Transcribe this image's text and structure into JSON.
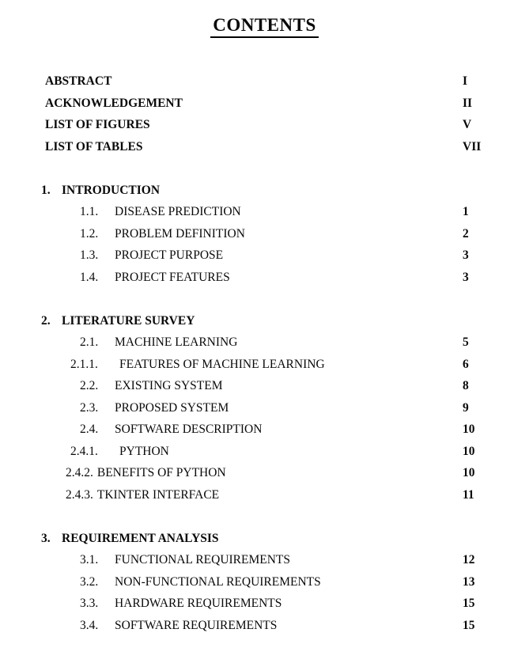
{
  "page": {
    "title": "CONTENTS"
  },
  "front_matter": [
    {
      "label": "ABSTRACT",
      "page": "I"
    },
    {
      "label": "ACKNOWLEDGEMENT",
      "page": "II"
    },
    {
      "label": "LIST OF FIGURES",
      "page": "V"
    },
    {
      "label": "LIST OF TABLES",
      "page": "VII"
    }
  ],
  "sections": [
    {
      "number": "1.",
      "title": "INTRODUCTION",
      "items": [
        {
          "number": "1.1.",
          "text": "DISEASE PREDICTION",
          "page": "1"
        },
        {
          "number": "1.2.",
          "text": "PROBLEM DEFINITION",
          "page": "2"
        },
        {
          "number": "1.3.",
          "text": "PROJECT PURPOSE",
          "page": "3"
        },
        {
          "number": "1.4.",
          "text": "PROJECT FEATURES",
          "page": "3"
        }
      ]
    },
    {
      "number": "2.",
      "title": "LITERATURE SURVEY",
      "items": [
        {
          "number": "2.1.",
          "text": "MACHINE LEARNING",
          "page": "5"
        },
        {
          "number": "2.1.1.",
          "text": "FEATURES OF MACHINE LEARNING",
          "page": "6"
        },
        {
          "number": "2.2.",
          "text": "EXISTING SYSTEM",
          "page": "8"
        },
        {
          "number": "2.3.",
          "text": "PROPOSED SYSTEM",
          "page": "9"
        },
        {
          "number": "2.4.",
          "text": "SOFTWARE DESCRIPTION",
          "page": "10"
        },
        {
          "number": "2.4.1.",
          "text": "PYTHON",
          "page": "10"
        },
        {
          "number": "2.4.2.",
          "text": "BENEFITS OF PYTHON",
          "page": "10"
        },
        {
          "number": "2.4.3.",
          "text": "TKINTER INTERFACE",
          "page": "11"
        }
      ]
    },
    {
      "number": "3.",
      "title": "REQUIREMENT ANALYSIS",
      "items": [
        {
          "number": "3.1.",
          "text": "FUNCTIONAL REQUIREMENTS",
          "page": "12"
        },
        {
          "number": "3.2.",
          "text": "NON-FUNCTIONAL REQUIREMENTS",
          "page": "13"
        },
        {
          "number": "3.3.",
          "text": "HARDWARE REQUIREMENTS",
          "page": "15"
        },
        {
          "number": "3.4.",
          "text": "SOFTWARE REQUIREMENTS",
          "page": "15"
        }
      ]
    }
  ]
}
